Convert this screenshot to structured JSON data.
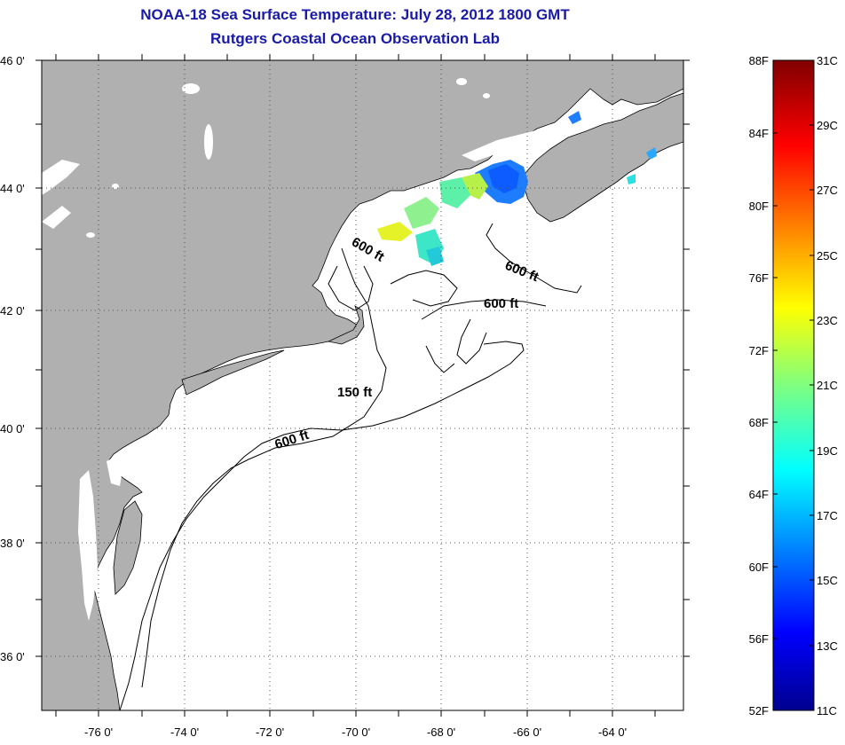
{
  "title": {
    "line1": "NOAA-18 Sea Surface Temperature:  July 28, 2012 1800 GMT",
    "line2": "Rutgers Coastal Ocean Observation Lab"
  },
  "colors": {
    "land": "#b0b0b0",
    "ocean": "#ffffff",
    "title_text": "#1a1aa8",
    "grid": "#555555"
  },
  "map": {
    "lat_labels": [
      "46 0'",
      "44 0'",
      "42 0'",
      "40 0'",
      "38 0'",
      "36 0'"
    ],
    "lon_labels": [
      "-76 0'",
      "-74 0'",
      "-72 0'",
      "-70 0'",
      "-68 0'",
      "-66 0'",
      "-64 0'"
    ],
    "isobath_labels": [
      "600 ft",
      "600 ft",
      "600 ft",
      "150 ft",
      "600 ft"
    ]
  },
  "colorbar": {
    "fahrenheit": [
      "88F",
      "84F",
      "80F",
      "76F",
      "72F",
      "68F",
      "64F",
      "60F",
      "56F",
      "52F"
    ],
    "celsius": [
      "31C",
      "29C",
      "27C",
      "25C",
      "23C",
      "21C",
      "19C",
      "17C",
      "15C",
      "13C",
      "11C"
    ]
  }
}
